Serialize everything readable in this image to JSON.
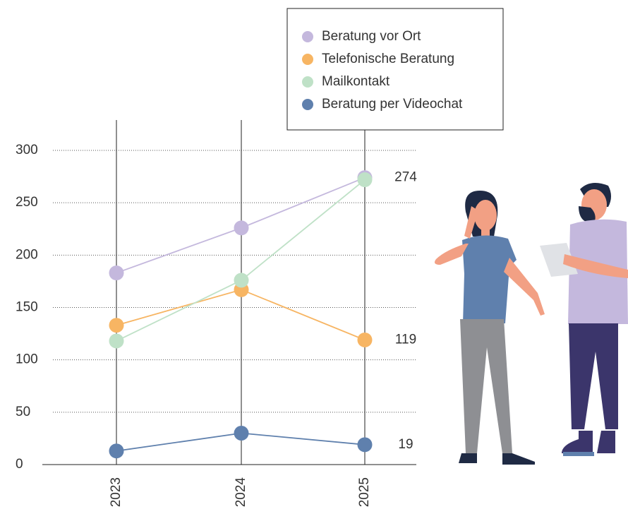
{
  "chart_data": {
    "type": "line",
    "categories": [
      "2023",
      "2024",
      "2025"
    ],
    "series": [
      {
        "name": "Beratung vor Ort",
        "color": "#c4b8dd",
        "values": [
          183,
          226,
          274
        ],
        "label_last": true
      },
      {
        "name": "Telefonische Beratung",
        "color": "#f7b563",
        "values": [
          133,
          167,
          119
        ],
        "label_last": true
      },
      {
        "name": "Mailkontakt",
        "color": "#bfe1c7",
        "values": [
          118,
          176,
          272
        ],
        "label_last": false
      },
      {
        "name": "Beratung per Videochat",
        "color": "#5f80ad",
        "values": [
          13,
          30,
          19
        ],
        "label_last": true
      }
    ],
    "ylim": [
      0,
      300
    ],
    "yticks": [
      0,
      50,
      100,
      150,
      200,
      250,
      300
    ],
    "grid": true,
    "legend": "top-right"
  }
}
